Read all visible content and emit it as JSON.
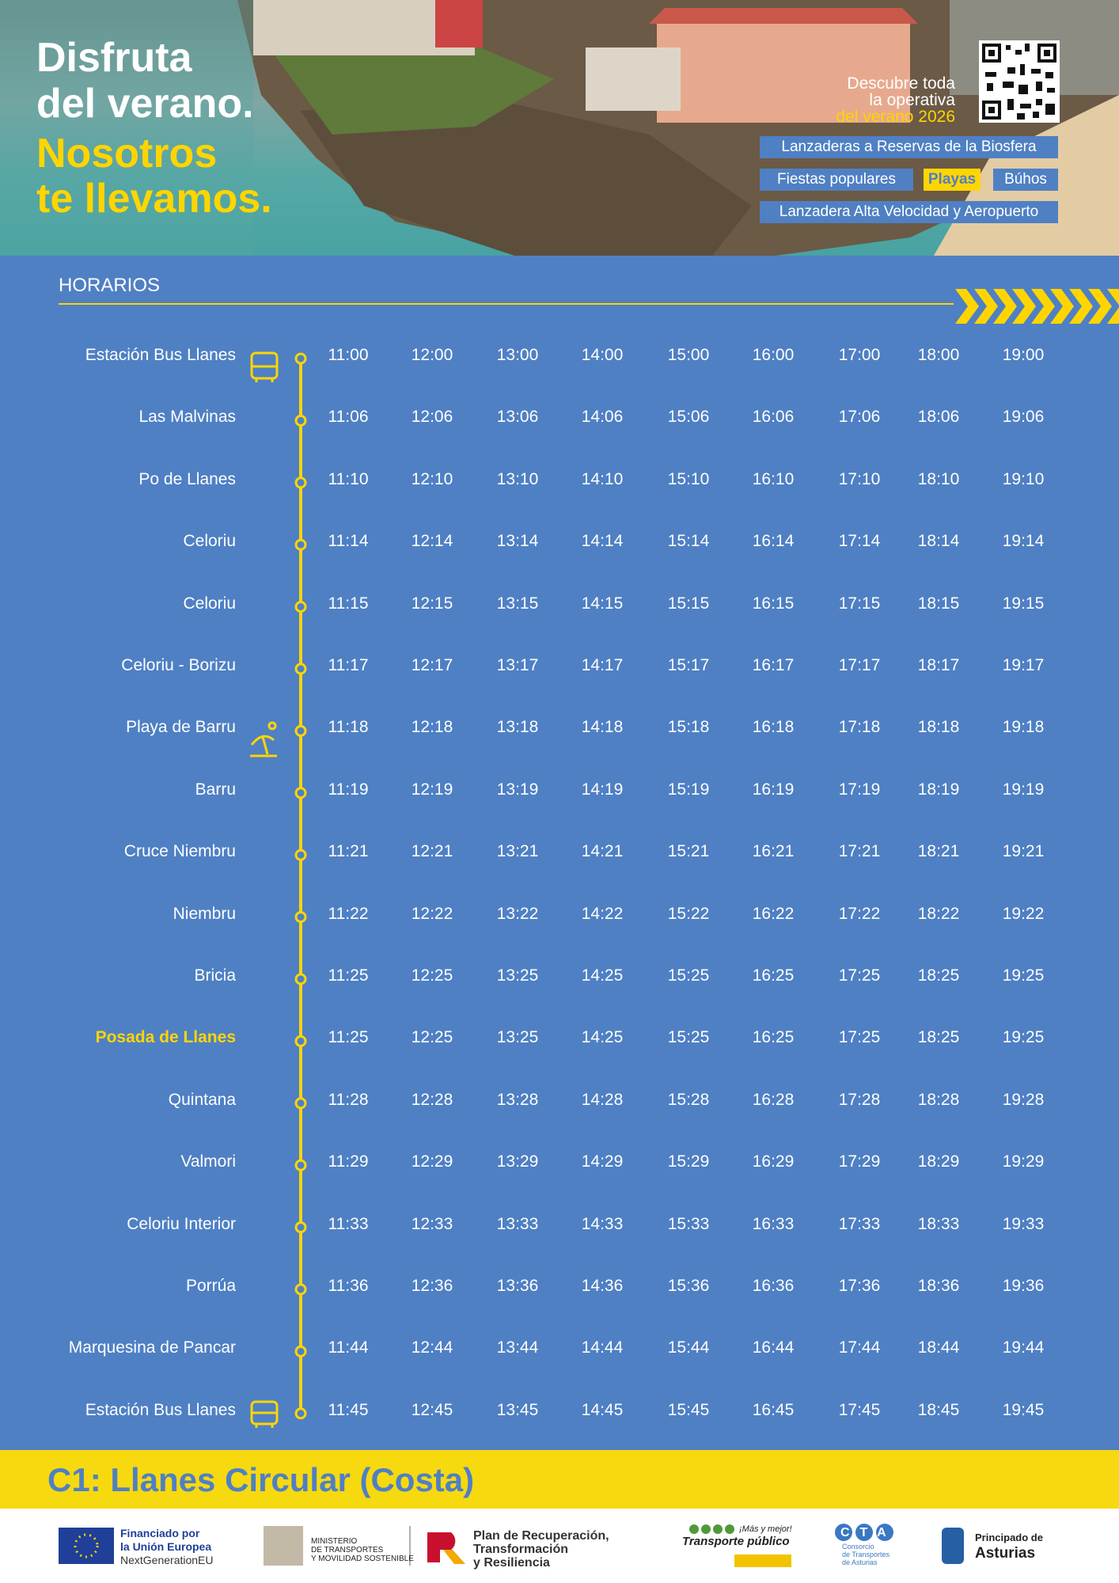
{
  "header": {
    "title_lines": [
      "Disfruta",
      "del verano."
    ],
    "slogan_lines": [
      "Nosotros",
      "te llevamos."
    ],
    "qr_text_lines": [
      "Descubre toda",
      "la operativa",
      "del verano 2026"
    ],
    "tags": [
      "Lanzaderas a Reservas de la Biosfera",
      "Fiestas populares",
      "Playas",
      "Búhos",
      "Lanzadera Alta Velocidad y Aeropuerto"
    ]
  },
  "section_title": "HORARIOS",
  "stops": [
    {
      "name": "Estación Bus Llanes",
      "times": [
        "11:00",
        "12:00",
        "13:00",
        "14:00",
        "15:00",
        "16:00",
        "17:00",
        "18:00",
        "19:00"
      ]
    },
    {
      "name": "Las Malvinas",
      "times": [
        "11:06",
        "12:06",
        "13:06",
        "14:06",
        "15:06",
        "16:06",
        "17:06",
        "18:06",
        "19:06"
      ]
    },
    {
      "name": "Po de Llanes",
      "times": [
        "11:10",
        "12:10",
        "13:10",
        "14:10",
        "15:10",
        "16:10",
        "17:10",
        "18:10",
        "19:10"
      ]
    },
    {
      "name": "Celoriu",
      "times": [
        "11:14",
        "12:14",
        "13:14",
        "14:14",
        "15:14",
        "16:14",
        "17:14",
        "18:14",
        "19:14"
      ]
    },
    {
      "name": "Celoriu",
      "times": [
        "11:15",
        "12:15",
        "13:15",
        "14:15",
        "15:15",
        "16:15",
        "17:15",
        "18:15",
        "19:15"
      ]
    },
    {
      "name": "Celoriu - Borizu",
      "times": [
        "11:17",
        "12:17",
        "13:17",
        "14:17",
        "15:17",
        "16:17",
        "17:17",
        "18:17",
        "19:17"
      ]
    },
    {
      "name": "Playa de Barru",
      "times": [
        "11:18",
        "12:18",
        "13:18",
        "14:18",
        "15:18",
        "16:18",
        "17:18",
        "18:18",
        "19:18"
      ]
    },
    {
      "name": "Barru",
      "times": [
        "11:19",
        "12:19",
        "13:19",
        "14:19",
        "15:19",
        "16:19",
        "17:19",
        "18:19",
        "19:19"
      ]
    },
    {
      "name": "Cruce Niembru",
      "times": [
        "11:21",
        "12:21",
        "13:21",
        "14:21",
        "15:21",
        "16:21",
        "17:21",
        "18:21",
        "19:21"
      ]
    },
    {
      "name": "Niembru",
      "times": [
        "11:22",
        "12:22",
        "13:22",
        "14:22",
        "15:22",
        "16:22",
        "17:22",
        "18:22",
        "19:22"
      ]
    },
    {
      "name": "Bricia",
      "times": [
        "11:25",
        "12:25",
        "13:25",
        "14:25",
        "15:25",
        "16:25",
        "17:25",
        "18:25",
        "19:25"
      ]
    },
    {
      "name": "Posada de Llanes",
      "color": "#ffd500",
      "times": [
        "11:25",
        "12:25",
        "13:25",
        "14:25",
        "15:25",
        "16:25",
        "17:25",
        "18:25",
        "19:25"
      ]
    },
    {
      "name": "Quintana",
      "times": [
        "11:28",
        "12:28",
        "13:28",
        "14:28",
        "15:28",
        "16:28",
        "17:28",
        "18:28",
        "19:28"
      ]
    },
    {
      "name": "Valmori",
      "times": [
        "11:29",
        "12:29",
        "13:29",
        "14:29",
        "15:29",
        "16:29",
        "17:29",
        "18:29",
        "19:29"
      ]
    },
    {
      "name": "Celoriu Interior",
      "times": [
        "11:33",
        "12:33",
        "13:33",
        "14:33",
        "15:33",
        "16:33",
        "17:33",
        "18:33",
        "19:33"
      ]
    },
    {
      "name": "Porrúa",
      "times": [
        "11:36",
        "12:36",
        "13:36",
        "14:36",
        "15:36",
        "16:36",
        "17:36",
        "18:36",
        "19:36"
      ]
    },
    {
      "name": "Marquesina de Pancar",
      "times": [
        "11:44",
        "12:44",
        "13:44",
        "14:44",
        "15:44",
        "16:44",
        "17:44",
        "18:44",
        "19:44"
      ]
    },
    {
      "name": "Estación Bus Llanes",
      "times": [
        "11:45",
        "12:45",
        "13:45",
        "14:45",
        "15:45",
        "16:45",
        "17:45",
        "18:45",
        "19:45"
      ]
    }
  ],
  "route_title": "C1: Llanes Circular (Costa)",
  "footer": {
    "eu": [
      "Financiado por",
      "la Unión Europea",
      "NextGenerationEU"
    ],
    "ministry": [
      "MINISTERIO",
      "DE TRANSPORTES",
      "Y MOVILIDAD SOSTENIBLE"
    ],
    "plan": [
      "Plan de Recuperación,",
      "Transformación",
      "y Resiliencia"
    ],
    "transport": [
      "¡Más y mejor!",
      "Transporte público"
    ],
    "cta": [
      "CTA",
      "Consorcio",
      "de Transportes",
      "de Asturias"
    ],
    "principado": [
      "Principado de",
      "Asturias"
    ]
  }
}
